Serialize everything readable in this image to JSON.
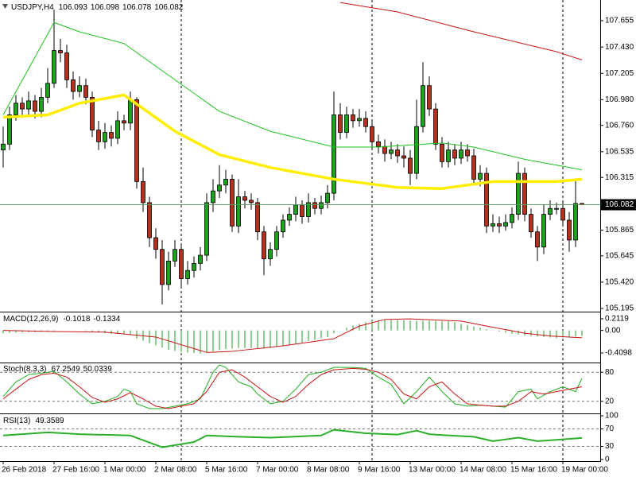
{
  "chart_data": [
    {
      "type": "candlestick",
      "title": "USDJPY,H4",
      "header_values": [
        106.093,
        106.098,
        106.078,
        106.082
      ],
      "open": [
        106.55,
        106.6,
        106.85,
        106.95,
        106.9,
        106.97,
        106.88,
        107.0,
        107.12,
        107.4,
        107.38,
        107.15,
        107.05,
        107.1,
        107.0,
        106.72,
        106.62,
        106.7,
        106.65,
        106.8,
        106.78,
        106.98,
        106.28,
        106.1,
        105.8,
        105.7,
        105.4,
        105.6,
        105.7,
        105.45,
        105.52,
        105.58,
        105.65,
        106.1,
        106.2,
        106.25,
        106.3,
        105.9,
        106.15,
        106.12,
        106.1,
        105.85,
        105.62,
        105.7,
        105.85,
        105.95,
        106.0,
        106.08,
        105.98,
        106.1,
        106.05,
        106.1,
        106.18,
        106.85,
        106.7,
        106.85,
        106.8,
        106.82,
        106.75,
        106.62,
        106.58,
        106.52,
        106.55,
        106.5,
        106.48,
        106.35,
        106.75,
        107.1,
        106.9,
        106.6,
        106.45,
        106.55,
        106.48,
        106.55,
        106.5,
        106.3,
        106.35,
        105.9,
        105.92,
        105.9,
        105.93,
        106.0,
        106.35,
        106.0,
        105.85,
        105.72,
        106.0,
        106.05,
        106.05,
        105.95,
        105.78,
        106.093
      ],
      "high": [
        106.75,
        106.92,
        107.02,
        107.0,
        107.05,
        107.02,
        107.08,
        107.25,
        107.75,
        107.5,
        107.45,
        107.22,
        107.18,
        107.16,
        107.05,
        106.8,
        106.78,
        106.76,
        106.88,
        106.85,
        107.05,
        107.0,
        106.4,
        106.15,
        105.88,
        105.78,
        105.68,
        105.78,
        105.74,
        105.6,
        105.64,
        105.72,
        106.18,
        106.3,
        106.42,
        106.38,
        106.34,
        106.3,
        106.2,
        106.18,
        106.14,
        105.9,
        105.76,
        105.9,
        106.0,
        106.06,
        106.15,
        106.12,
        106.18,
        106.14,
        106.16,
        106.25,
        107.05,
        106.95,
        106.92,
        106.9,
        106.9,
        106.88,
        106.8,
        106.68,
        106.64,
        106.62,
        106.6,
        106.58,
        106.55,
        106.98,
        107.3,
        107.18,
        106.95,
        106.66,
        106.62,
        106.6,
        106.62,
        106.6,
        106.56,
        106.42,
        106.4,
        106.0,
        105.98,
        106.0,
        106.06,
        106.45,
        106.4,
        106.05,
        105.9,
        106.08,
        106.12,
        106.1,
        106.1,
        106.02,
        106.3,
        106.098
      ],
      "low": [
        106.4,
        106.55,
        106.8,
        106.84,
        106.85,
        106.82,
        106.83,
        106.95,
        107.08,
        107.3,
        107.08,
        106.98,
        107.0,
        106.94,
        106.66,
        106.55,
        106.56,
        106.58,
        106.6,
        106.72,
        106.72,
        106.22,
        106.02,
        105.72,
        105.62,
        105.23,
        105.35,
        105.55,
        105.38,
        105.4,
        105.46,
        105.52,
        105.6,
        106.02,
        106.14,
        106.18,
        105.85,
        105.84,
        106.05,
        106.04,
        105.78,
        105.48,
        105.56,
        105.64,
        105.8,
        105.9,
        105.94,
        105.92,
        105.93,
        106.0,
        106.0,
        106.05,
        106.12,
        106.64,
        106.65,
        106.74,
        106.75,
        106.7,
        106.56,
        106.52,
        106.45,
        106.47,
        106.44,
        106.4,
        106.25,
        106.3,
        106.7,
        106.84,
        106.55,
        106.4,
        106.4,
        106.42,
        106.43,
        106.45,
        106.25,
        106.24,
        105.84,
        105.85,
        105.84,
        105.86,
        105.88,
        105.95,
        105.94,
        105.8,
        105.6,
        105.66,
        105.95,
        106.0,
        105.9,
        105.68,
        105.72,
        106.078
      ],
      "close": [
        106.6,
        106.85,
        106.95,
        106.9,
        106.97,
        106.88,
        107.0,
        107.12,
        107.4,
        107.38,
        107.15,
        107.05,
        107.1,
        107.0,
        106.72,
        106.62,
        106.7,
        106.65,
        106.8,
        106.78,
        106.98,
        106.28,
        106.1,
        105.8,
        105.7,
        105.4,
        105.6,
        105.7,
        105.45,
        105.52,
        105.58,
        105.65,
        106.1,
        106.2,
        106.25,
        106.3,
        105.9,
        106.15,
        106.12,
        106.1,
        105.85,
        105.62,
        105.7,
        105.85,
        105.95,
        106.0,
        106.08,
        105.98,
        106.1,
        106.05,
        106.1,
        106.18,
        106.85,
        106.7,
        106.85,
        106.8,
        106.82,
        106.75,
        106.62,
        106.58,
        106.52,
        106.55,
        106.5,
        106.48,
        106.35,
        106.75,
        107.1,
        106.9,
        106.6,
        106.45,
        106.55,
        106.48,
        106.55,
        106.5,
        106.3,
        106.35,
        105.9,
        105.92,
        105.9,
        105.93,
        106.0,
        106.35,
        106.0,
        105.85,
        105.72,
        106.0,
        106.05,
        106.05,
        105.95,
        105.78,
        106.093,
        106.082
      ],
      "up_color": "#1f9e1f",
      "down_color": "#b2321e",
      "wick_color": "#000000",
      "overlays": [
        {
          "color": "#ffee00",
          "line_width": 3.5,
          "x": [
            0,
            7,
            12,
            19,
            27,
            34,
            42,
            52,
            62,
            69,
            77,
            87,
            91
          ],
          "values": [
            106.83,
            106.85,
            106.95,
            107.02,
            106.71,
            106.51,
            106.4,
            106.3,
            106.23,
            106.22,
            106.28,
            106.28,
            106.3
          ]
        },
        {
          "color": "#1cc41c",
          "line_width": 1,
          "x": [
            0,
            8,
            12,
            19,
            27,
            34,
            42,
            52,
            59,
            69,
            74,
            82,
            91
          ],
          "values": [
            106.85,
            107.64,
            107.56,
            107.46,
            107.15,
            106.88,
            106.71,
            106.575,
            106.575,
            106.61,
            106.575,
            106.47,
            106.38
          ]
        },
        {
          "color": "#c81414",
          "line_width": 1,
          "x": [
            53,
            62,
            74,
            87,
            91
          ],
          "values": [
            107.81,
            107.73,
            107.56,
            107.39,
            107.32
          ]
        }
      ],
      "current_price": 106.082,
      "current_line_color": "#5e9a5e",
      "ylim": [
        105.168,
        107.832
      ],
      "yticks": [
        107.655,
        {
          "value": 107.43,
          "label": "107.430"
        },
        107.205,
        {
          "value": 106.98,
          "label": "106.980"
        },
        {
          "value": 106.76,
          "label": "106.760"
        },
        106.535,
        106.315,
        105.865,
        105.645,
        {
          "value": 105.42,
          "label": "105.420"
        },
        105.195
      ],
      "xticks": [
        {
          "value": 0,
          "label": "26 Feb 2018"
        },
        {
          "value": 8,
          "label": "27 Feb 16:00"
        },
        {
          "value": 16,
          "label": "1 Mar 00:00"
        },
        {
          "value": 24,
          "label": "2 Mar 08:00"
        },
        {
          "value": 32,
          "label": "5 Mar 16:00"
        },
        {
          "value": 40,
          "label": "7 Mar 00:00"
        },
        {
          "value": 48,
          "label": "8 Mar 08:00"
        },
        {
          "value": 56,
          "label": "9 Mar 16:00"
        },
        {
          "value": 64,
          "label": "13 Mar 00:00"
        },
        {
          "value": 72,
          "label": "14 Mar 08:00"
        },
        {
          "value": 80,
          "label": "15 Mar 16:00"
        },
        {
          "value": 88,
          "label": "19 Mar 00:00"
        }
      ]
    },
    {
      "type": "macd",
      "title": "MACD(12,26,9)",
      "header_values": [
        -0.1018,
        -0.1334
      ],
      "values": [
        -0.05,
        -0.045,
        -0.04,
        -0.035,
        -0.03,
        -0.03,
        -0.025,
        -0.02,
        -0.01,
        0.0,
        0.0,
        0.0,
        0.0,
        -0.01,
        -0.03,
        -0.04,
        -0.05,
        -0.06,
        -0.065,
        -0.07,
        -0.08,
        -0.15,
        -0.19,
        -0.23,
        -0.27,
        -0.31,
        -0.35,
        -0.37,
        -0.39,
        -0.4,
        -0.41,
        -0.42,
        -0.4,
        -0.38,
        -0.36,
        -0.34,
        -0.33,
        -0.32,
        -0.32,
        -0.32,
        -0.33,
        -0.33,
        -0.32,
        -0.3,
        -0.28,
        -0.26,
        -0.24,
        -0.22,
        -0.19,
        -0.17,
        -0.14,
        -0.12,
        -0.05,
        0.0,
        0.05,
        0.09,
        0.12,
        0.15,
        0.18,
        0.185,
        0.19,
        0.19,
        0.19,
        0.185,
        0.18,
        0.18,
        0.18,
        0.18,
        0.175,
        0.17,
        0.17,
        0.15,
        0.12,
        0.1,
        0.07,
        0.05,
        0.02,
        0.0,
        -0.02,
        -0.04,
        -0.06,
        -0.07,
        -0.09,
        -0.1,
        -0.11,
        -0.12,
        -0.13,
        -0.14,
        -0.13,
        -0.12,
        -0.11,
        -0.1018
      ],
      "color": "#1f9e1f",
      "signal": {
        "color": "#c81414",
        "x": [
          0,
          8,
          16,
          24,
          32,
          36,
          44,
          52,
          56,
          60,
          64,
          72,
          76,
          82,
          86,
          91
        ],
        "values": [
          0,
          -0.02,
          -0.03,
          -0.12,
          -0.4,
          -0.38,
          -0.28,
          -0.15,
          0.08,
          0.2,
          0.21,
          0.17,
          0.08,
          -0.05,
          -0.1,
          -0.1334
        ]
      },
      "ylim": [
        -0.5833,
        0.3276
      ],
      "yticks": [
        0.2119,
        {
          "value": 0,
          "label": "0.00"
        },
        -0.4098
      ]
    },
    {
      "type": "oscillator",
      "title": "Stoch(8,3,3)",
      "header_values": [
        67.2549,
        50.0339
      ],
      "lines": [
        {
          "color": "#1fae1f",
          "x": [
            0,
            2,
            4,
            6,
            8,
            10,
            12,
            14,
            16,
            18,
            19,
            20,
            21,
            23,
            25,
            27,
            29,
            31,
            33,
            34,
            35,
            37,
            39,
            40,
            42,
            44,
            46,
            48,
            50,
            52,
            55,
            57,
            59,
            61,
            63,
            65,
            67,
            69,
            71,
            73,
            75,
            77,
            79,
            81,
            83,
            84,
            86,
            88,
            90,
            91
          ],
          "values": [
            30,
            60,
            75,
            78,
            82,
            60,
            35,
            15,
            20,
            30,
            45,
            40,
            15,
            5,
            5,
            10,
            15,
            25,
            80,
            95,
            90,
            60,
            50,
            35,
            15,
            20,
            45,
            75,
            80,
            90,
            90,
            88,
            70,
            55,
            15,
            40,
            70,
            40,
            15,
            10,
            12,
            10,
            8,
            40,
            45,
            25,
            40,
            50,
            40,
            67.2549
          ]
        },
        {
          "color": "#c81414",
          "x": [
            0,
            2,
            4,
            6,
            8,
            10,
            12,
            14,
            16,
            18,
            20,
            22,
            24,
            26,
            28,
            30,
            32,
            34,
            36,
            38,
            40,
            42,
            44,
            46,
            48,
            50,
            52,
            55,
            57,
            59,
            61,
            63,
            65,
            67,
            69,
            71,
            73,
            75,
            77,
            79,
            81,
            83,
            85,
            87,
            89,
            91
          ],
          "values": [
            25,
            45,
            65,
            75,
            78,
            70,
            50,
            28,
            18,
            25,
            38,
            25,
            10,
            5,
            10,
            15,
            40,
            80,
            85,
            70,
            50,
            30,
            18,
            30,
            55,
            75,
            85,
            88,
            86,
            80,
            65,
            35,
            25,
            50,
            60,
            35,
            15,
            12,
            10,
            10,
            20,
            40,
            35,
            40,
            45,
            50.0339
          ]
        }
      ],
      "ylim": [
        0,
        100
      ],
      "yticks": [
        80,
        20
      ]
    },
    {
      "type": "oscillator",
      "title": "RSI(13)",
      "header_values": [
        49.3589
      ],
      "lines": [
        {
          "color": "#2ab02a",
          "line_width": 2,
          "x": [
            0,
            7,
            12,
            20,
            25,
            30,
            32,
            37,
            42,
            50,
            52,
            57,
            62,
            65,
            67,
            69,
            74,
            77,
            81,
            84,
            87,
            91
          ],
          "values": [
            55,
            62,
            58,
            55,
            28,
            40,
            55,
            52,
            50,
            55,
            68,
            60,
            57,
            66,
            58,
            56,
            52,
            42,
            50,
            42,
            45,
            49.3589
          ]
        }
      ],
      "ylim": [
        0,
        100
      ],
      "yticks": [
        100,
        70,
        30,
        0
      ]
    }
  ]
}
